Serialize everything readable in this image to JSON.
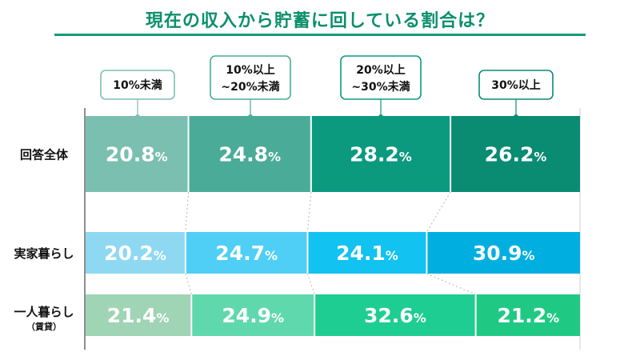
{
  "chart_data": {
    "type": "stacked-bar-horizontal-100",
    "title": "現在の収入から貯蓄に回している割合は？",
    "categories_legend": [
      {
        "line1": "10%未満",
        "line2": ""
      },
      {
        "line1": "10%以上",
        "line2": "~20%未満"
      },
      {
        "line1": "20%以上",
        "line2": "~30%未満"
      },
      {
        "line1": "30%以上",
        "line2": ""
      }
    ],
    "rows": [
      {
        "label": "回答全体",
        "sublabel": "",
        "values": [
          20.8,
          24.8,
          28.2,
          26.2
        ],
        "colors": [
          "#7bbfb0",
          "#4aab98",
          "#0c9a7f",
          "#0a8c73"
        ]
      },
      {
        "label": "実家暮らし",
        "sublabel": "",
        "values": [
          20.2,
          24.7,
          24.1,
          30.9
        ],
        "colors": [
          "#8fd8f2",
          "#4fcff5",
          "#12c2f0",
          "#00afe0"
        ]
      },
      {
        "label": "一人暮らし",
        "sublabel": "（賃貸）",
        "values": [
          21.4,
          24.9,
          32.6,
          21.2
        ],
        "colors": [
          "#9fd4b4",
          "#5fd8ae",
          "#1ecd92",
          "#20c983"
        ]
      }
    ],
    "value_suffix": "%",
    "xlim": [
      0,
      100
    ]
  }
}
